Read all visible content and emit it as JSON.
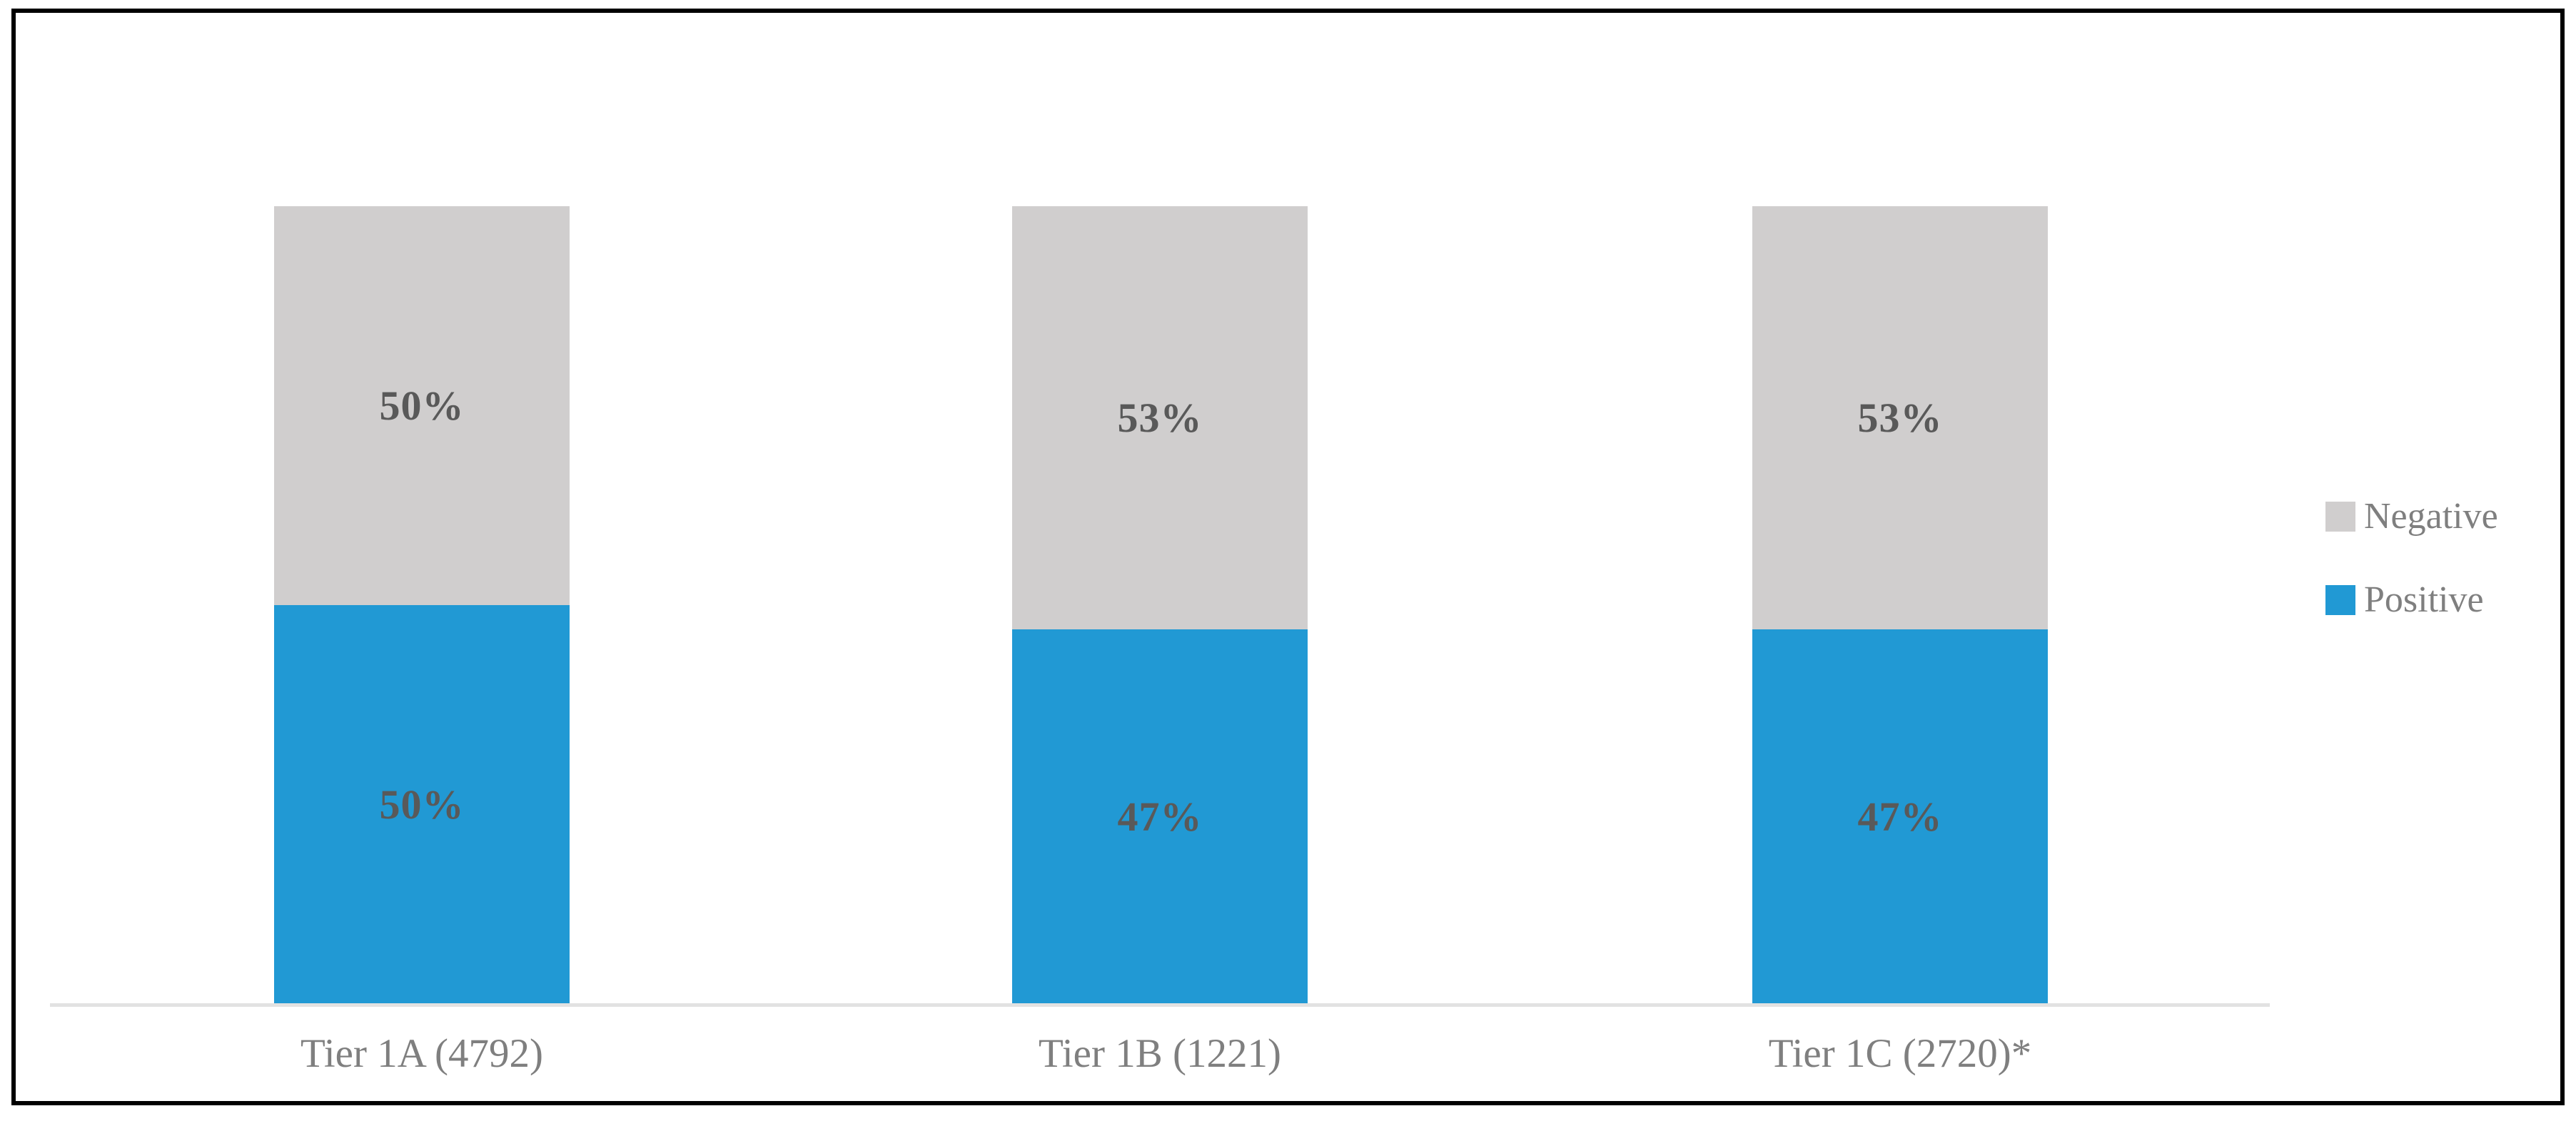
{
  "window": {
    "background": "#ffffff",
    "frame_border_color": "#000000"
  },
  "chart_data": {
    "type": "bar",
    "variant": "stacked-percentage-column",
    "title": "",
    "xlabel": "",
    "ylabel": "",
    "ylim": [
      0,
      100
    ],
    "grid": false,
    "categories": [
      "Tier 1A (4792)",
      "Tier 1B (1221)",
      "Tier 1C (2720)*"
    ],
    "series": [
      {
        "name": "Positive",
        "color": "#2199d4",
        "values": [
          50,
          47,
          47
        ],
        "labels": [
          "50%",
          "47%",
          "47%"
        ]
      },
      {
        "name": "Negative",
        "color": "#d0cece",
        "values": [
          50,
          53,
          53
        ],
        "labels": [
          "50%",
          "53%",
          "53%"
        ]
      }
    ],
    "legend": {
      "position": "right",
      "entries": [
        {
          "label": "Negative",
          "color": "#d0cece"
        },
        {
          "label": "Positive",
          "color": "#2199d4"
        }
      ]
    },
    "axis": {
      "baseline_color": "#e2e2e2"
    },
    "colors": {
      "segment_label": "#595959",
      "category_label": "#7f7f7f",
      "legend_label": "#7f7f7f"
    }
  }
}
